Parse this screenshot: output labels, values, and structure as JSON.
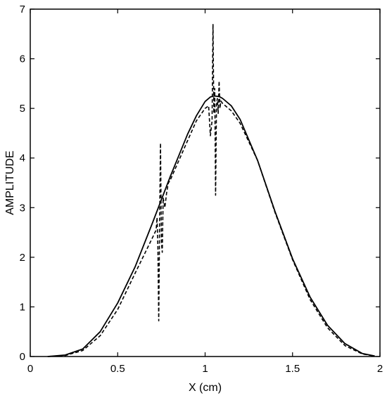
{
  "chart_data": {
    "type": "line",
    "title": "",
    "xlabel": "X (cm)",
    "ylabel": "AMPLITUDE",
    "xlim": [
      0,
      2
    ],
    "ylim": [
      0,
      7
    ],
    "xticks": [
      0,
      0.5,
      1,
      1.5,
      2
    ],
    "xtick_labels": [
      "0",
      "0.5",
      "1",
      "1.5",
      "2"
    ],
    "yticks": [
      0,
      1,
      2,
      3,
      4,
      5,
      6,
      7
    ],
    "ytick_labels": [
      "0",
      "1",
      "2",
      "3",
      "4",
      "5",
      "6",
      "7"
    ],
    "grid": false,
    "legend": "none",
    "series": [
      {
        "style": "solid",
        "color": "#000000",
        "x": [
          0.1,
          0.2,
          0.3,
          0.4,
          0.5,
          0.6,
          0.7,
          0.8,
          0.9,
          0.95,
          1.0,
          1.03,
          1.05,
          1.08,
          1.1,
          1.15,
          1.2,
          1.3,
          1.4,
          1.5,
          1.6,
          1.7,
          1.8,
          1.9,
          1.97
        ],
        "y": [
          0.0,
          0.03,
          0.15,
          0.5,
          1.08,
          1.81,
          2.7,
          3.62,
          4.48,
          4.85,
          5.14,
          5.23,
          5.25,
          5.24,
          5.2,
          5.05,
          4.78,
          3.95,
          2.92,
          1.97,
          1.2,
          0.63,
          0.26,
          0.06,
          0.01
        ]
      },
      {
        "style": "dashed",
        "color": "#000000",
        "x": [
          0.1,
          0.2,
          0.3,
          0.4,
          0.5,
          0.6,
          0.7,
          0.72,
          0.725,
          0.73,
          0.735,
          0.74,
          0.745,
          0.75,
          0.755,
          0.76,
          0.77,
          0.78,
          0.79,
          0.8,
          0.9,
          0.95,
          1.0,
          1.02,
          1.03,
          1.04,
          1.045,
          1.05,
          1.055,
          1.06,
          1.065,
          1.07,
          1.075,
          1.08,
          1.085,
          1.09,
          1.1,
          1.15,
          1.2,
          1.3,
          1.4,
          1.5,
          1.6,
          1.7,
          1.8,
          1.9,
          1.97
        ],
        "y": [
          0.0,
          0.02,
          0.12,
          0.42,
          0.95,
          1.68,
          2.4,
          2.55,
          2.8,
          2.2,
          0.72,
          2.8,
          4.3,
          2.3,
          2.1,
          3.2,
          3.0,
          3.3,
          3.5,
          3.55,
          4.35,
          4.75,
          5.0,
          5.05,
          4.45,
          4.75,
          6.7,
          4.9,
          5.4,
          3.25,
          5.1,
          5.2,
          4.9,
          5.55,
          5.0,
          5.15,
          5.1,
          4.95,
          4.7,
          3.95,
          2.9,
          1.95,
          1.15,
          0.58,
          0.22,
          0.05,
          0.01
        ]
      }
    ]
  }
}
